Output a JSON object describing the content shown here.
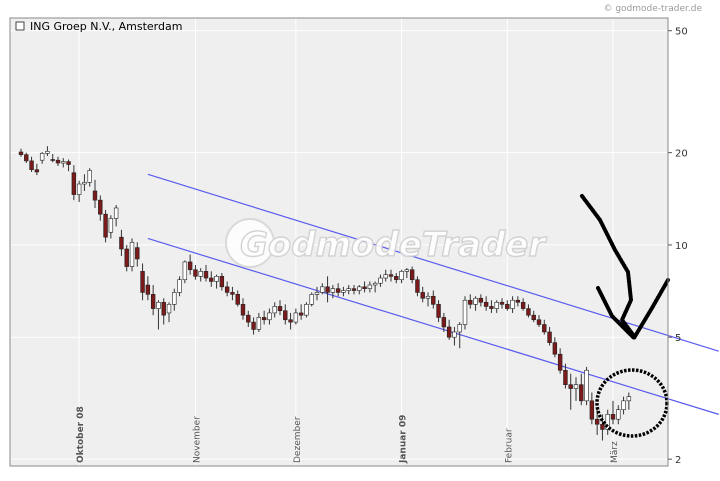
{
  "source_text": "© godmode-trader.de",
  "watermark_text": "GodmodeTrader",
  "chart_data": {
    "type": "candlestick",
    "title": "ING Groep N.V., Amsterdam",
    "y_scale": "log",
    "ylim": [
      1.9,
      55
    ],
    "y_ticks": [
      {
        "value": 50,
        "label": "50"
      },
      {
        "value": 20,
        "label": "20"
      },
      {
        "value": 10,
        "label": "10"
      },
      {
        "value": 5,
        "label": "5"
      },
      {
        "value": 2,
        "label": "2"
      }
    ],
    "x_labels": [
      {
        "label": "Oktober 08",
        "bar": 11,
        "bold": true
      },
      {
        "label": "November",
        "bar": 33,
        "bold": false
      },
      {
        "label": "Dezember",
        "bar": 52,
        "bold": false
      },
      {
        "label": "Januar 09",
        "bar": 72,
        "bold": true
      },
      {
        "label": "Februar",
        "bar": 92,
        "bold": false
      },
      {
        "label": "März",
        "bar": 112,
        "bold": false
      }
    ],
    "candles": [
      [
        20.1,
        20.6,
        19.4,
        19.7
      ],
      [
        19.7,
        20.0,
        18.5,
        18.8
      ],
      [
        18.8,
        19.4,
        17.3,
        17.6
      ],
      [
        17.6,
        18.4,
        16.9,
        17.3
      ],
      [
        18.9,
        20.1,
        18.4,
        19.9
      ],
      [
        19.9,
        21.0,
        19.5,
        20.2
      ],
      [
        19.0,
        19.8,
        18.6,
        18.9
      ],
      [
        18.9,
        19.4,
        18.1,
        18.5
      ],
      [
        18.5,
        19.2,
        17.9,
        18.7
      ],
      [
        18.7,
        19.0,
        17.4,
        18.3
      ],
      [
        17.2,
        18.2,
        14.0,
        14.6
      ],
      [
        14.6,
        16.2,
        13.8,
        15.8
      ],
      [
        15.8,
        17.0,
        15.0,
        16.0
      ],
      [
        16.0,
        17.8,
        15.5,
        17.5
      ],
      [
        15.0,
        16.3,
        13.2,
        14.0
      ],
      [
        14.0,
        14.5,
        12.0,
        12.6
      ],
      [
        12.6,
        13.0,
        10.2,
        10.6
      ],
      [
        11.0,
        12.5,
        10.5,
        12.2
      ],
      [
        12.2,
        13.5,
        11.5,
        13.2
      ],
      [
        10.6,
        11.2,
        9.2,
        9.7
      ],
      [
        9.7,
        10.0,
        8.2,
        8.5
      ],
      [
        8.5,
        10.5,
        8.2,
        10.2
      ],
      [
        9.8,
        10.2,
        8.5,
        9.0
      ],
      [
        8.2,
        8.7,
        6.6,
        7.0
      ],
      [
        7.4,
        7.9,
        6.6,
        6.9
      ],
      [
        6.9,
        7.4,
        5.9,
        6.2
      ],
      [
        6.2,
        6.6,
        5.3,
        6.5
      ],
      [
        6.5,
        6.7,
        5.5,
        5.9
      ],
      [
        6.0,
        6.5,
        5.6,
        6.4
      ],
      [
        6.4,
        7.2,
        6.1,
        7.0
      ],
      [
        7.0,
        7.9,
        6.8,
        7.7
      ],
      [
        7.7,
        8.9,
        7.5,
        8.8
      ],
      [
        8.8,
        9.3,
        8.0,
        8.3
      ],
      [
        8.3,
        8.6,
        7.7,
        7.9
      ],
      [
        7.9,
        8.4,
        7.6,
        8.2
      ],
      [
        8.2,
        8.6,
        7.6,
        7.8
      ],
      [
        7.8,
        8.2,
        7.3,
        7.6
      ],
      [
        7.6,
        8.0,
        7.2,
        7.9
      ],
      [
        7.9,
        8.1,
        7.1,
        7.3
      ],
      [
        7.3,
        7.6,
        6.8,
        7.0
      ],
      [
        7.0,
        7.3,
        6.6,
        6.9
      ],
      [
        6.9,
        7.1,
        6.3,
        6.4
      ],
      [
        6.4,
        6.7,
        5.7,
        5.9
      ],
      [
        5.9,
        6.1,
        5.4,
        5.6
      ],
      [
        5.6,
        5.8,
        5.1,
        5.3
      ],
      [
        5.3,
        6.0,
        5.2,
        5.8
      ],
      [
        5.8,
        6.1,
        5.5,
        5.7
      ],
      [
        5.7,
        6.2,
        5.5,
        6.0
      ],
      [
        6.0,
        6.5,
        5.8,
        6.3
      ],
      [
        6.3,
        6.6,
        5.9,
        6.1
      ],
      [
        6.1,
        6.4,
        5.5,
        5.7
      ],
      [
        5.7,
        6.0,
        5.3,
        5.6
      ],
      [
        5.6,
        6.2,
        5.5,
        6.0
      ],
      [
        6.0,
        6.4,
        5.7,
        5.9
      ],
      [
        5.9,
        6.5,
        5.8,
        6.4
      ],
      [
        6.4,
        7.0,
        6.3,
        6.9
      ],
      [
        6.9,
        7.3,
        6.6,
        7.0
      ],
      [
        7.0,
        7.5,
        6.9,
        7.3
      ],
      [
        7.3,
        7.9,
        6.5,
        7.0
      ],
      [
        7.0,
        7.4,
        6.7,
        7.2
      ],
      [
        7.2,
        7.5,
        6.8,
        7.0
      ],
      [
        7.0,
        7.3,
        6.8,
        7.1
      ],
      [
        7.1,
        7.4,
        6.9,
        7.2
      ],
      [
        7.2,
        7.4,
        6.9,
        7.1
      ],
      [
        7.1,
        7.4,
        6.9,
        7.3
      ],
      [
        7.3,
        7.6,
        7.0,
        7.2
      ],
      [
        7.2,
        7.6,
        7.0,
        7.4
      ],
      [
        7.4,
        7.6,
        7.0,
        7.5
      ],
      [
        7.5,
        8.0,
        7.3,
        7.8
      ],
      [
        7.8,
        8.3,
        7.6,
        8.0
      ],
      [
        8.0,
        8.3,
        7.6,
        7.9
      ],
      [
        7.9,
        8.1,
        7.5,
        7.7
      ],
      [
        7.7,
        8.3,
        7.5,
        8.2
      ],
      [
        8.2,
        8.4,
        7.8,
        8.3
      ],
      [
        8.3,
        8.5,
        7.5,
        7.7
      ],
      [
        7.7,
        7.9,
        6.8,
        7.0
      ],
      [
        7.0,
        7.3,
        6.5,
        6.7
      ],
      [
        6.7,
        7.0,
        6.3,
        6.8
      ],
      [
        6.8,
        7.1,
        6.2,
        6.4
      ],
      [
        6.4,
        6.6,
        5.6,
        5.8
      ],
      [
        5.8,
        6.0,
        5.2,
        5.4
      ],
      [
        5.4,
        5.7,
        4.9,
        5.0
      ],
      [
        5.0,
        5.4,
        4.7,
        5.2
      ],
      [
        5.2,
        5.6,
        4.6,
        5.5
      ],
      [
        5.5,
        6.8,
        5.3,
        6.6
      ],
      [
        6.6,
        6.9,
        6.2,
        6.4
      ],
      [
        6.4,
        6.8,
        6.1,
        6.7
      ],
      [
        6.7,
        6.9,
        6.3,
        6.5
      ],
      [
        6.5,
        6.8,
        6.1,
        6.3
      ],
      [
        6.3,
        6.6,
        6.0,
        6.2
      ],
      [
        6.2,
        6.6,
        6.0,
        6.5
      ],
      [
        6.5,
        6.7,
        6.2,
        6.4
      ],
      [
        6.4,
        6.6,
        6.1,
        6.2
      ],
      [
        6.2,
        6.8,
        6.0,
        6.6
      ],
      [
        6.6,
        6.8,
        6.3,
        6.5
      ],
      [
        6.5,
        6.7,
        6.1,
        6.2
      ],
      [
        6.2,
        6.4,
        5.8,
        5.9
      ],
      [
        5.9,
        6.1,
        5.6,
        5.7
      ],
      [
        5.7,
        5.9,
        5.4,
        5.5
      ],
      [
        5.5,
        5.7,
        5.1,
        5.2
      ],
      [
        5.2,
        5.4,
        4.7,
        4.8
      ],
      [
        4.8,
        5.0,
        4.3,
        4.4
      ],
      [
        4.4,
        4.6,
        3.8,
        3.9
      ],
      [
        3.9,
        4.1,
        3.4,
        3.5
      ],
      [
        3.5,
        3.8,
        2.9,
        3.4
      ],
      [
        3.4,
        3.7,
        3.1,
        3.5
      ],
      [
        3.5,
        3.8,
        3.0,
        3.1
      ],
      [
        3.1,
        4.0,
        3.0,
        3.9
      ],
      [
        3.1,
        3.3,
        2.6,
        2.7
      ],
      [
        2.7,
        2.9,
        2.4,
        2.6
      ],
      [
        2.6,
        2.8,
        2.3,
        2.5
      ],
      [
        2.5,
        2.9,
        2.4,
        2.8
      ],
      [
        2.8,
        3.1,
        2.6,
        2.7
      ],
      [
        2.7,
        3.0,
        2.6,
        2.9
      ],
      [
        2.9,
        3.2,
        2.8,
        3.1
      ],
      [
        3.1,
        3.3,
        2.9,
        3.2
      ]
    ],
    "trend_channel": [
      {
        "from": [
          24,
          17.0
        ],
        "to": [
          132,
          4.5
        ]
      },
      {
        "from": [
          24,
          10.5
        ],
        "to": [
          132,
          2.8
        ]
      }
    ],
    "colors": {
      "plot_bg": "#efefef",
      "bull": "#ffffff",
      "bear": "#7a1a1a",
      "wick": "#333333",
      "channel": "#5b5bf0",
      "annotation": "#000000",
      "grid": "#ffffff"
    }
  }
}
